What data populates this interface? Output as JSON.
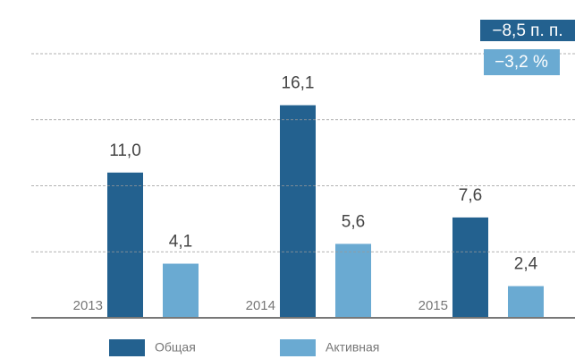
{
  "chart_data": {
    "type": "bar",
    "categories": [
      "2013",
      "2014",
      "2015"
    ],
    "series": [
      {
        "name": "Общая",
        "color": "#23618f",
        "values": [
          11.0,
          16.1,
          7.6
        ],
        "value_labels": [
          "11,0",
          "16,1",
          "7,6"
        ]
      },
      {
        "name": "Активная",
        "color": "#6aaad2",
        "values": [
          4.1,
          5.6,
          2.4
        ],
        "value_labels": [
          "4,1",
          "5,6",
          "2,4"
        ]
      }
    ],
    "annotations": [
      "−8,5 п. п.",
      "−3,2 %"
    ],
    "ylim": [
      0,
      20
    ],
    "yticks": [
      0,
      5,
      10,
      15,
      20
    ],
    "grid": true
  }
}
